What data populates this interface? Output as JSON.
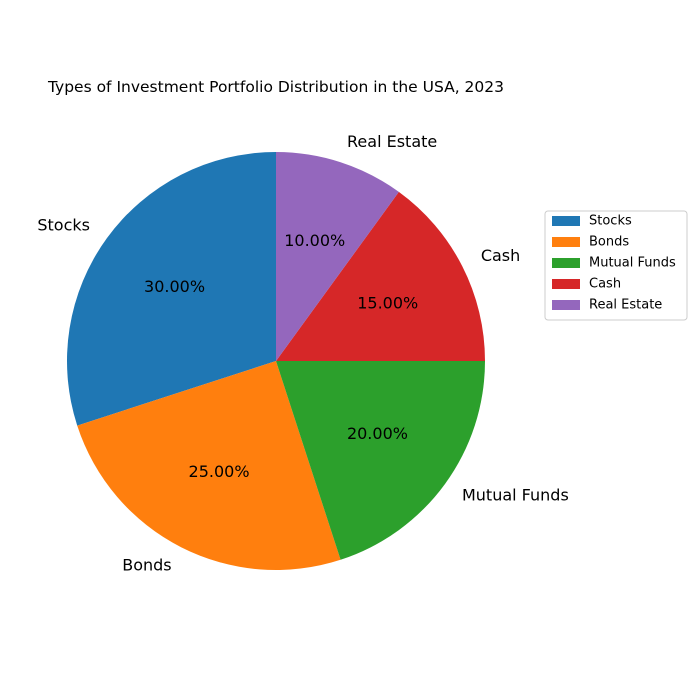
{
  "chart_data": {
    "type": "pie",
    "title": "Types of Investment Portfolio Distribution in the USA, 2023",
    "categories": [
      "Stocks",
      "Bonds",
      "Mutual Funds",
      "Cash",
      "Real Estate"
    ],
    "values": [
      30,
      25,
      20,
      15,
      10
    ],
    "percent_labels": [
      "30.00%",
      "25.00%",
      "20.00%",
      "15.00%",
      "10.00%"
    ],
    "colors": [
      "#1f77b4",
      "#ff7f0e",
      "#2ca02c",
      "#d62728",
      "#9467bd"
    ],
    "start_angle_deg": 90,
    "direction": "counterclockwise",
    "legend": {
      "position": "right",
      "entries": [
        "Stocks",
        "Bonds",
        "Mutual Funds",
        "Cash",
        "Real Estate"
      ]
    }
  }
}
